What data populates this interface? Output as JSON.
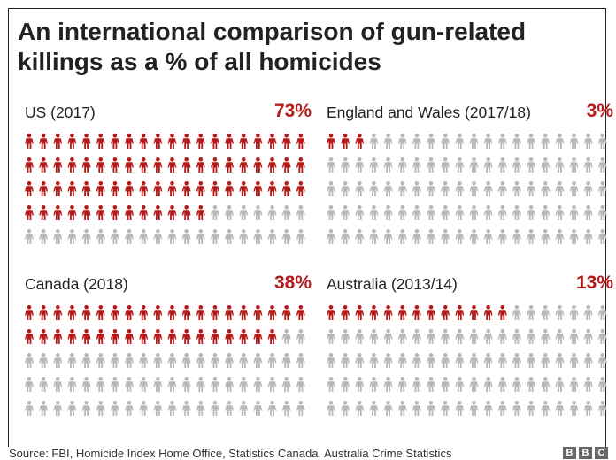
{
  "title_lines": [
    "An international comparison of gun-related",
    "killings as a % of all homicides"
  ],
  "source": "Source: FBI, Homicide Index Home Office, Statistics Canada, Australia Crime Statistics",
  "logo_letters": [
    "B",
    "B",
    "C"
  ],
  "colors": {
    "highlight": "#b51a1a",
    "base": "#b8b8b8",
    "text": "#222222"
  },
  "chart_data": [
    {
      "type": "pictogram",
      "label": "US (2017)",
      "value_label": "73%",
      "value": 73,
      "rows": 5,
      "cols": 20,
      "highlighted_icons": 73
    },
    {
      "type": "pictogram",
      "label": "England and Wales (2017/18)",
      "value_label": "3%",
      "value": 3,
      "rows": 5,
      "cols": 20,
      "highlighted_icons": 3
    },
    {
      "type": "pictogram",
      "label": "Canada (2018)",
      "value_label": "38%",
      "value": 38,
      "rows": 5,
      "cols": 20,
      "highlighted_icons": 38
    },
    {
      "type": "pictogram",
      "label": "Australia (2013/14)",
      "value_label": "13%",
      "value": 13,
      "rows": 5,
      "cols": 20,
      "highlighted_icons": 13
    }
  ]
}
